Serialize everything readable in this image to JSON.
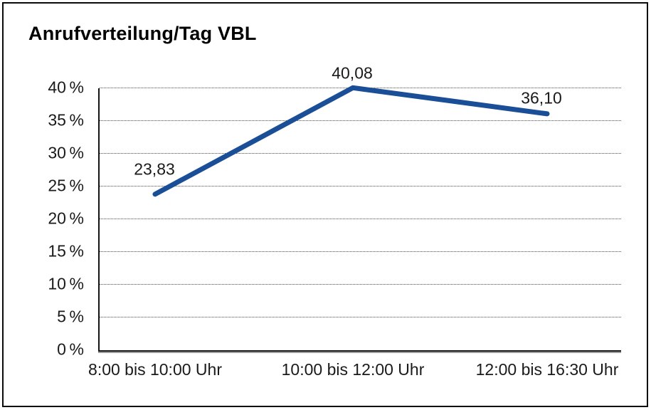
{
  "chart_data": {
    "type": "line",
    "title": "Anrufverteilung/Tag VBL",
    "categories": [
      "8:00 bis 10:00 Uhr",
      "10:00 bis 12:00 Uhr",
      "12:00 bis 16:30 Uhr"
    ],
    "values": [
      23.83,
      40.08,
      36.1
    ],
    "value_labels": [
      "23,83",
      "40,08",
      "36,10"
    ],
    "ytick_values": [
      0,
      5,
      10,
      15,
      20,
      25,
      30,
      35,
      40
    ],
    "ytick_labels": [
      "0 %",
      "5 %",
      "10 %",
      "15 %",
      "20 %",
      "25 %",
      "30 %",
      "35 %",
      "40 %"
    ],
    "ylim": [
      0,
      40
    ],
    "xlabel": "",
    "ylabel": "",
    "legend": "none",
    "grid": "dotted-horizontal",
    "line_color": "#1a4e96",
    "background_color": "#ffffff",
    "border_color": "#0a0a0a"
  }
}
